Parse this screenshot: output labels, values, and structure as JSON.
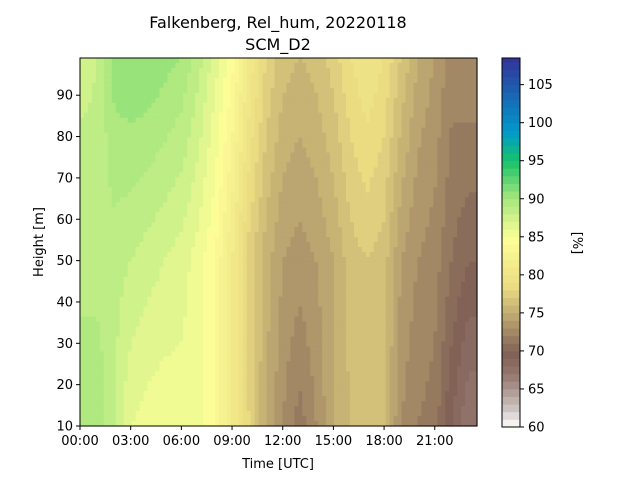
{
  "chart_data": {
    "type": "heatmap",
    "title": "Falkenberg, Rel_hum, 20220118",
    "subtitle": "SCM_D2",
    "xlabel": "Time [UTC]",
    "ylabel": "Height [m]",
    "colorbar_label": "[%]",
    "x_ticks": [
      "00:00",
      "03:00",
      "06:00",
      "09:00",
      "12:00",
      "15:00",
      "18:00",
      "21:00"
    ],
    "y_ticks": [
      10,
      20,
      30,
      40,
      50,
      60,
      70,
      80,
      90
    ],
    "colorbar_ticks": [
      60,
      65,
      70,
      75,
      80,
      85,
      90,
      95,
      100,
      105
    ],
    "xlim_hours": [
      0,
      23.5
    ],
    "ylim": [
      10,
      99
    ],
    "clim": [
      60,
      108.5
    ],
    "colormap": "terrain_r",
    "rel_hum_profiles": [
      {
        "time_h": 0,
        "h10": 89,
        "h50": 89,
        "h100": 87.5
      },
      {
        "time_h": 1,
        "h10": 90,
        "h50": 88.5,
        "h100": 88
      },
      {
        "time_h": 2,
        "h10": 88,
        "h50": 88.5,
        "h100": 90.5
      },
      {
        "time_h": 3,
        "h10": 86,
        "h50": 88,
        "h100": 91
      },
      {
        "time_h": 4,
        "h10": 85.5,
        "h50": 87.5,
        "h100": 91
      },
      {
        "time_h": 5,
        "h10": 85.3,
        "h50": 87,
        "h100": 90.5
      },
      {
        "time_h": 6,
        "h10": 85.5,
        "h50": 86.5,
        "h100": 90
      },
      {
        "time_h": 7,
        "h10": 85.5,
        "h50": 85.5,
        "h100": 88.5
      },
      {
        "time_h": 8,
        "h10": 84,
        "h50": 84,
        "h100": 86.5
      },
      {
        "time_h": 9,
        "h10": 81,
        "h50": 81,
        "h100": 84.5
      },
      {
        "time_h": 10,
        "h10": 78,
        "h50": 77.5,
        "h100": 81
      },
      {
        "time_h": 11,
        "h10": 75,
        "h50": 75.5,
        "h100": 78
      },
      {
        "time_h": 12,
        "h10": 73,
        "h50": 74,
        "h100": 76.5
      },
      {
        "time_h": 13,
        "h10": 71.5,
        "h50": 73.5,
        "h100": 76
      },
      {
        "time_h": 14,
        "h10": 73,
        "h50": 74,
        "h100": 76.5
      },
      {
        "time_h": 15,
        "h10": 75,
        "h50": 75,
        "h100": 77.5
      },
      {
        "time_h": 16,
        "h10": 76,
        "h50": 76.5,
        "h100": 79
      },
      {
        "time_h": 17,
        "h10": 76.5,
        "h50": 77,
        "h100": 80
      },
      {
        "time_h": 18,
        "h10": 76,
        "h50": 76.5,
        "h100": 79
      },
      {
        "time_h": 19,
        "h10": 73,
        "h50": 74,
        "h100": 77
      },
      {
        "time_h": 20,
        "h10": 72,
        "h50": 73,
        "h100": 75
      },
      {
        "time_h": 21,
        "h10": 71.5,
        "h50": 72.5,
        "h100": 74
      },
      {
        "time_h": 22,
        "h10": 69,
        "h50": 71,
        "h100": 72.5
      },
      {
        "time_h": 23,
        "h10": 67,
        "h50": 70,
        "h100": 73
      }
    ]
  }
}
